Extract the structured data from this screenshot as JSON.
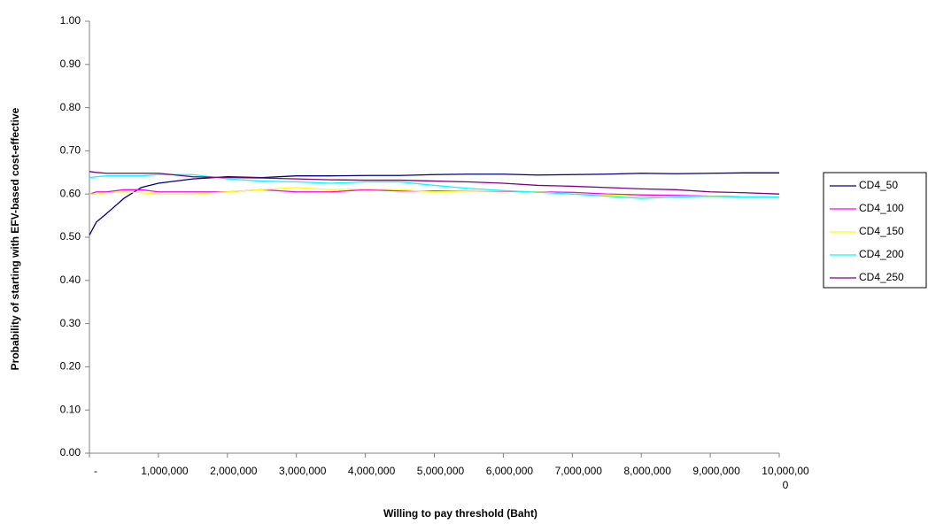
{
  "chart_data": {
    "type": "line",
    "x_label": "Willing to pay threshold (Baht)",
    "y_label": "Probability of starting with EFV-based cost-effective",
    "x": [
      0,
      100000,
      250000,
      500000,
      750000,
      1000000,
      1500000,
      2000000,
      2500000,
      3000000,
      3500000,
      4000000,
      4500000,
      5000000,
      5500000,
      6000000,
      6500000,
      7000000,
      7500000,
      8000000,
      8500000,
      9000000,
      9500000,
      10000000
    ],
    "series": [
      {
        "name": "CD4_50",
        "color": "#000080",
        "values": [
          0.505,
          0.535,
          0.555,
          0.59,
          0.615,
          0.625,
          0.635,
          0.64,
          0.638,
          0.642,
          0.642,
          0.643,
          0.643,
          0.645,
          0.646,
          0.646,
          0.644,
          0.645,
          0.646,
          0.648,
          0.647,
          0.648,
          0.649,
          0.649
        ]
      },
      {
        "name": "CD4_100",
        "color": "#ff00ff",
        "values": [
          0.6,
          0.605,
          0.605,
          0.61,
          0.61,
          0.605,
          0.605,
          0.605,
          0.61,
          0.605,
          0.605,
          0.61,
          0.607,
          0.607,
          0.607,
          0.606,
          0.605,
          0.604,
          0.6,
          0.598,
          0.597,
          0.595,
          0.594,
          0.593
        ]
      },
      {
        "name": "CD4_150",
        "color": "#ffff00",
        "values": [
          0.6,
          0.6,
          0.603,
          0.605,
          0.603,
          0.6,
          0.6,
          0.605,
          0.61,
          0.615,
          0.61,
          0.612,
          0.61,
          0.605,
          0.607,
          0.607,
          0.605,
          0.6,
          0.598,
          0.595,
          0.595,
          0.594,
          0.594,
          0.593
        ]
      },
      {
        "name": "CD4_200",
        "color": "#00ffff",
        "values": [
          0.638,
          0.64,
          0.642,
          0.642,
          0.642,
          0.645,
          0.645,
          0.635,
          0.63,
          0.628,
          0.625,
          0.628,
          0.628,
          0.62,
          0.613,
          0.608,
          0.604,
          0.6,
          0.595,
          0.59,
          0.593,
          0.595,
          0.593,
          0.593
        ]
      },
      {
        "name": "CD4_250",
        "color": "#800080",
        "values": [
          0.652,
          0.65,
          0.648,
          0.648,
          0.648,
          0.648,
          0.64,
          0.638,
          0.637,
          0.635,
          0.633,
          0.632,
          0.632,
          0.63,
          0.628,
          0.625,
          0.62,
          0.618,
          0.615,
          0.612,
          0.61,
          0.605,
          0.603,
          0.6
        ]
      }
    ],
    "xlim": [
      0,
      10000000
    ],
    "xticks": [
      {
        "value": 0,
        "label": "-"
      },
      {
        "value": 1000000,
        "label": "1,000,000"
      },
      {
        "value": 2000000,
        "label": "2,000,000"
      },
      {
        "value": 3000000,
        "label": "3,000,000"
      },
      {
        "value": 4000000,
        "label": "4,000,000"
      },
      {
        "value": 5000000,
        "label": "5,000,000"
      },
      {
        "value": 6000000,
        "label": "6,000,000"
      },
      {
        "value": 7000000,
        "label": "7,000,000"
      },
      {
        "value": 8000000,
        "label": "8,000,000"
      },
      {
        "value": 9000000,
        "label": "9,000,000"
      },
      {
        "value": 10000000,
        "label": "10,000,000"
      }
    ],
    "ylim": [
      0,
      1
    ],
    "yticks": [
      {
        "value": 0,
        "label": "0.00"
      },
      {
        "value": 0.1,
        "label": "0.10"
      },
      {
        "value": 0.2,
        "label": "0.20"
      },
      {
        "value": 0.3,
        "label": "0.30"
      },
      {
        "value": 0.4,
        "label": "0.40"
      },
      {
        "value": 0.5,
        "label": "0.50"
      },
      {
        "value": 0.6,
        "label": "0.60"
      },
      {
        "value": 0.7,
        "label": "0.70"
      },
      {
        "value": 0.8,
        "label": "0.80"
      },
      {
        "value": 0.9,
        "label": "0.90"
      },
      {
        "value": 1,
        "label": "1.00"
      }
    ],
    "legend": "right"
  }
}
